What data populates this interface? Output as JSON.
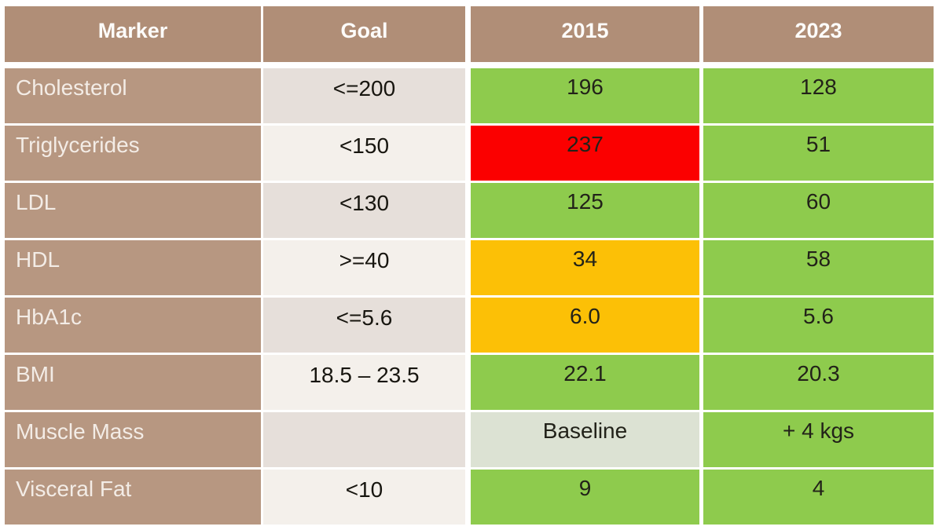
{
  "chart_data": {
    "type": "table",
    "columns": [
      "Marker",
      "Goal",
      "2015",
      "2023"
    ],
    "rows": [
      {
        "marker": "Cholesterol",
        "goal": "<=200",
        "v2015": {
          "text": "196",
          "status": "good"
        },
        "v2023": {
          "text": "128",
          "status": "good"
        }
      },
      {
        "marker": "Triglycerides",
        "goal": "<150",
        "v2015": {
          "text": "237",
          "status": "bad"
        },
        "v2023": {
          "text": "51",
          "status": "good"
        }
      },
      {
        "marker": "LDL",
        "goal": "<130",
        "v2015": {
          "text": "125",
          "status": "good"
        },
        "v2023": {
          "text": "60",
          "status": "good"
        }
      },
      {
        "marker": "HDL",
        "goal": ">=40",
        "v2015": {
          "text": "34",
          "status": "warn"
        },
        "v2023": {
          "text": "58",
          "status": "good"
        }
      },
      {
        "marker": "HbA1c",
        "goal": "<=5.6",
        "v2015": {
          "text": "6.0",
          "status": "warn"
        },
        "v2023": {
          "text": "5.6",
          "status": "good"
        }
      },
      {
        "marker": "BMI",
        "goal": "18.5 – 23.5",
        "v2015": {
          "text": "22.1",
          "status": "good"
        },
        "v2023": {
          "text": "20.3",
          "status": "good"
        }
      },
      {
        "marker": "Muscle Mass",
        "goal": "",
        "v2015": {
          "text": "Baseline",
          "status": "neutral"
        },
        "v2023": {
          "text": "+ 4 kgs",
          "status": "good"
        }
      },
      {
        "marker": "Visceral Fat",
        "goal": "<10",
        "v2015": {
          "text": "9",
          "status": "good"
        },
        "v2023": {
          "text": "4",
          "status": "good"
        }
      }
    ]
  },
  "colors": {
    "good": "#8ecb4d",
    "bad": "#fb0000",
    "warn": "#fcc006",
    "neutral": "#dce2d3",
    "header_bg": "#b08e77",
    "marker_bg": "#b79781",
    "goal_odd": "#e6dfda",
    "goal_even": "#f4f0eb"
  }
}
